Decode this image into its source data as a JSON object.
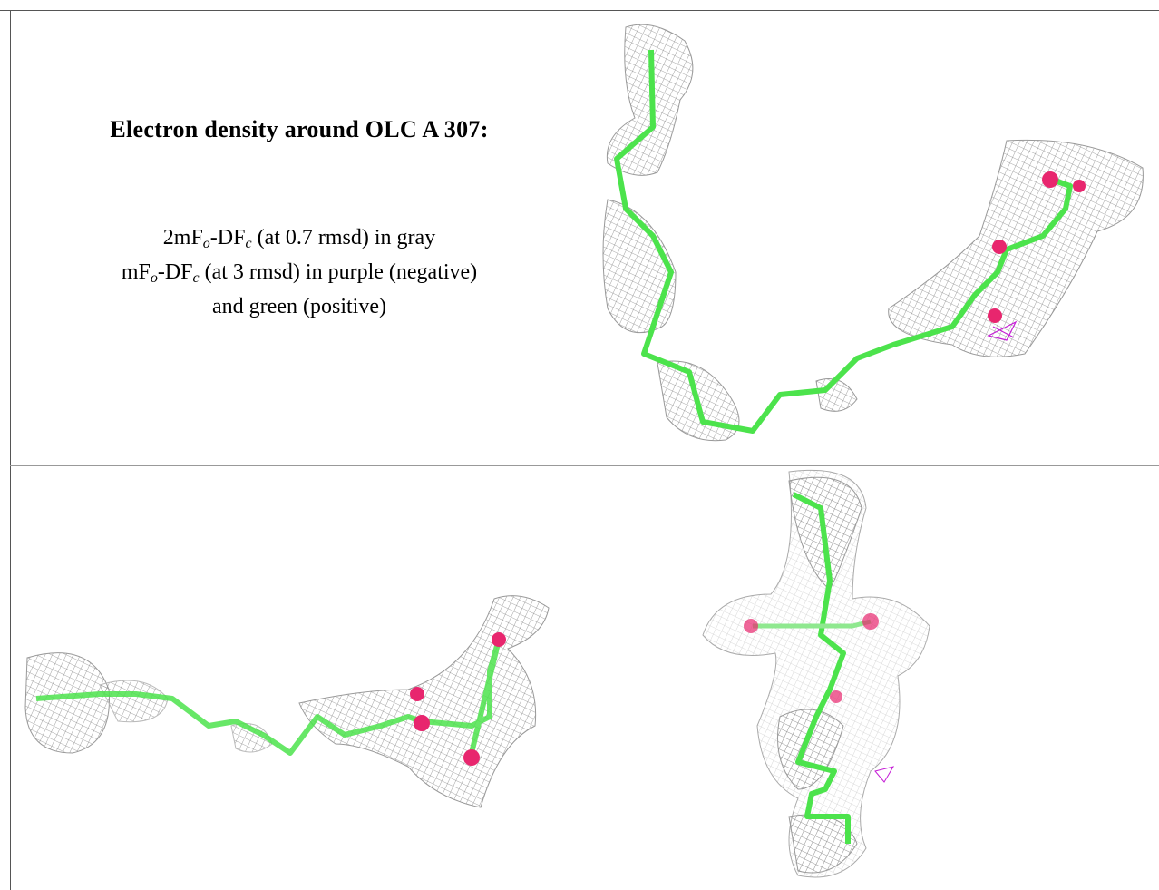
{
  "title": "Electron density around OLC A 307:",
  "legend_lines": [
    [
      "2mF",
      "o",
      "-DF",
      "c",
      " (at 0.7 rmsd) in gray"
    ],
    [
      "mF",
      "o",
      "-DF",
      "c",
      " (at 3 rmsd) in purple (negative)"
    ],
    [
      "and green (positive)"
    ]
  ]
}
